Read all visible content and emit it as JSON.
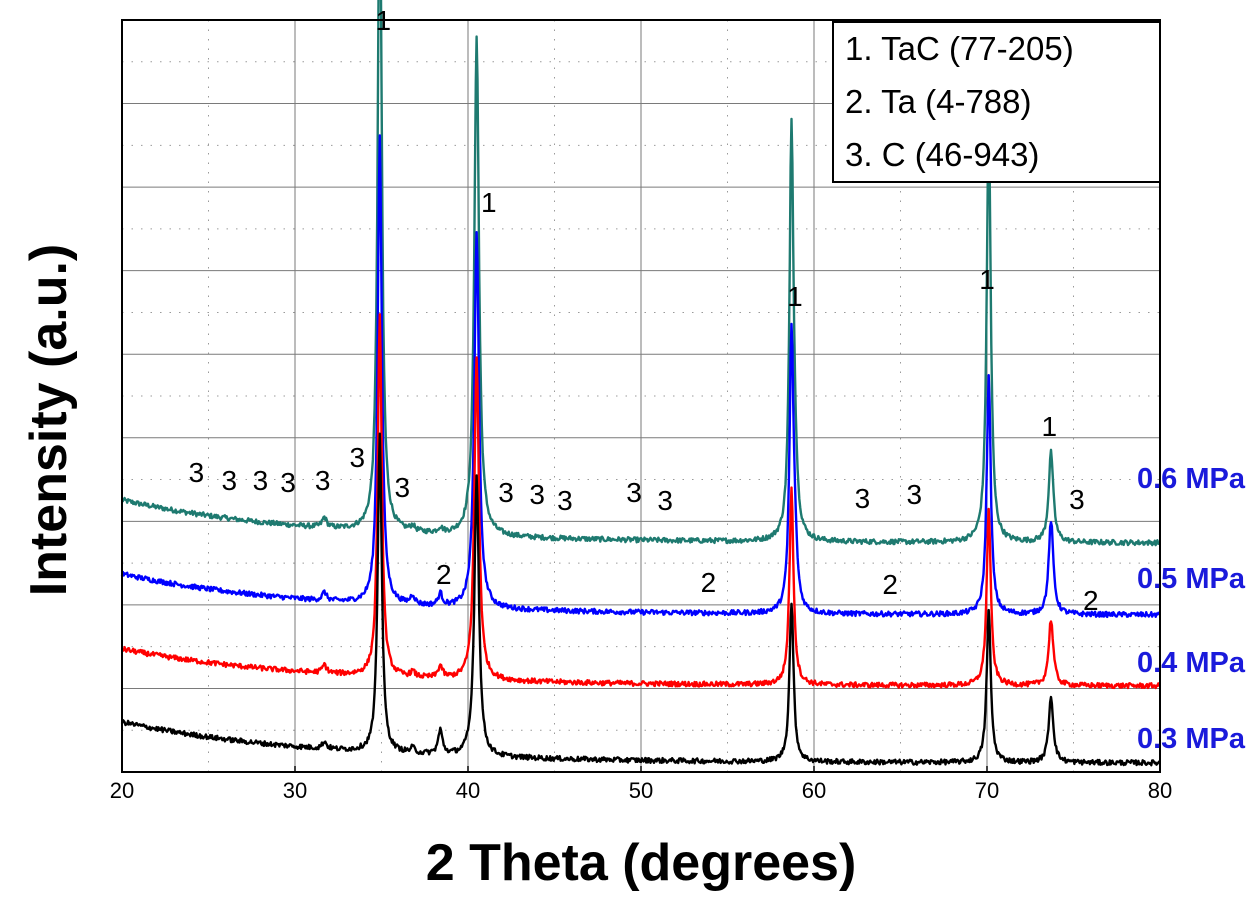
{
  "chart_data": {
    "type": "line",
    "title": "",
    "xlabel": "2 Theta (degrees)",
    "ylabel": "Intensity (a.u.)",
    "xlim": [
      20,
      80
    ],
    "x_ticks": [
      20,
      30,
      40,
      50,
      60,
      70,
      80
    ],
    "y_ticks_shown": false,
    "grid": true,
    "legend": {
      "placement": "top-right",
      "entries": [
        "1. TaC (77-205)",
        "2. Ta (4-788)",
        "3. C (46-943)"
      ]
    },
    "peak_positions": [
      34.9,
      40.5,
      58.7,
      70.1,
      73.7
    ],
    "secondary_peaks": [
      31.7,
      36.8,
      38.4,
      58.9
    ],
    "series": [
      {
        "name": "0.3 MPa",
        "color": "#000000",
        "baseline_start": 50,
        "baseline_end": 9,
        "peak_heights": [
          320,
          280,
          160,
          152,
          66
        ],
        "secondary_heights": [
          7,
          5,
          24,
          0
        ]
      },
      {
        "name": "0.4 MPa",
        "color": "#ff0000",
        "baseline_start": 123,
        "baseline_end": 86,
        "peak_heights": [
          360,
          322,
          195,
          176,
          66
        ],
        "secondary_heights": [
          8,
          5,
          12,
          0
        ]
      },
      {
        "name": "0.5 MPa",
        "color": "#0000ff",
        "baseline_start": 198,
        "baseline_end": 157,
        "peak_heights": [
          470,
          378,
          276,
          238,
          94
        ],
        "secondary_heights": [
          8,
          9,
          12,
          40
        ]
      },
      {
        "name": "0.6 MPa",
        "color": "#1e7a70",
        "baseline_start": 272,
        "baseline_end": 229,
        "peak_heights": [
          677,
          500,
          410,
          424,
          90
        ],
        "secondary_heights": [
          10,
          5,
          5,
          35
        ]
      }
    ],
    "annotations": [
      {
        "text": "1",
        "x": 35.1,
        "y_level": 742
      },
      {
        "text": "1",
        "x": 41.2,
        "y_level": 560
      },
      {
        "text": "1",
        "x": 58.9,
        "y_level": 466
      },
      {
        "text": "1",
        "x": 70.0,
        "y_level": 483
      },
      {
        "text": "1",
        "x": 73.6,
        "y_level": 336
      },
      {
        "text": "3",
        "x": 24.3,
        "y_level": 290
      },
      {
        "text": "3",
        "x": 26.2,
        "y_level": 282
      },
      {
        "text": "3",
        "x": 28.0,
        "y_level": 282
      },
      {
        "text": "3",
        "x": 29.6,
        "y_level": 280
      },
      {
        "text": "3",
        "x": 31.6,
        "y_level": 282
      },
      {
        "text": "3",
        "x": 33.6,
        "y_level": 305
      },
      {
        "text": "3",
        "x": 36.2,
        "y_level": 275
      },
      {
        "text": "3",
        "x": 42.2,
        "y_level": 270
      },
      {
        "text": "3",
        "x": 44.0,
        "y_level": 268
      },
      {
        "text": "3",
        "x": 45.6,
        "y_level": 262
      },
      {
        "text": "3",
        "x": 49.6,
        "y_level": 270
      },
      {
        "text": "3",
        "x": 51.4,
        "y_level": 262
      },
      {
        "text": "3",
        "x": 62.8,
        "y_level": 264
      },
      {
        "text": "3",
        "x": 65.8,
        "y_level": 268
      },
      {
        "text": "3",
        "x": 75.2,
        "y_level": 263
      },
      {
        "text": "2",
        "x": 38.6,
        "y_level": 188
      },
      {
        "text": "2",
        "x": 53.9,
        "y_level": 180
      },
      {
        "text": "2",
        "x": 64.4,
        "y_level": 178
      },
      {
        "text": "2",
        "x": 76.0,
        "y_level": 162
      }
    ],
    "series_labels": [
      "0.6 MPa",
      "0.5 MPa",
      "0.4 MPa",
      "0.3 MPa"
    ]
  }
}
